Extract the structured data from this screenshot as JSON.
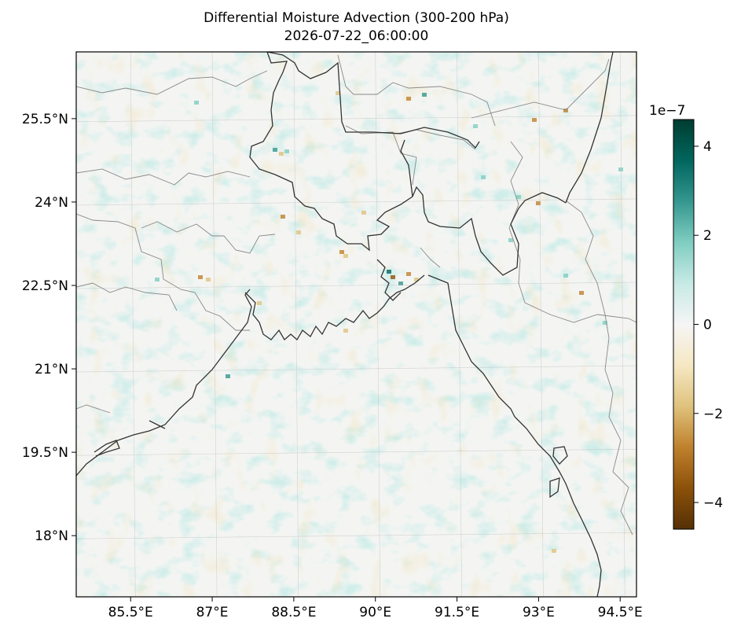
{
  "title": "Differential Moisture Advection (300-200 hPa)",
  "subtitle": "2026-07-22_06:00:00",
  "map": {
    "lon_range": [
      84.5,
      94.8
    ],
    "lat_range": [
      16.9,
      26.7
    ],
    "lon_ticks": [
      {
        "value": 85.5,
        "label": "85.5°E"
      },
      {
        "value": 87,
        "label": "87°E"
      },
      {
        "value": 88.5,
        "label": "88.5°E"
      },
      {
        "value": 90,
        "label": "90°E"
      },
      {
        "value": 91.5,
        "label": "91.5°E"
      },
      {
        "value": 93,
        "label": "93°E"
      },
      {
        "value": 94.5,
        "label": "94.5°E"
      }
    ],
    "lat_ticks": [
      {
        "value": 25.5,
        "label": "25.5°N"
      },
      {
        "value": 24,
        "label": "24°N"
      },
      {
        "value": 22.5,
        "label": "22.5°N"
      },
      {
        "value": 21,
        "label": "21°N"
      },
      {
        "value": 19.5,
        "label": "19.5°N"
      },
      {
        "value": 18,
        "label": "18°N"
      }
    ],
    "gridlines": true,
    "colormap": "BrBG",
    "background_color": "#f4f5f3"
  },
  "colorbar": {
    "multiplier": "1e−7",
    "range": [
      -4.6,
      4.6
    ],
    "ticks": [
      {
        "value": 4,
        "label": "4"
      },
      {
        "value": 2,
        "label": "2"
      },
      {
        "value": 0,
        "label": "0"
      },
      {
        "value": -2,
        "label": "−2"
      },
      {
        "value": -4,
        "label": "−4"
      }
    ],
    "colors": [
      "#543005",
      "#8c510a",
      "#bf812d",
      "#dfc27d",
      "#f6e8c3",
      "#f5f5f5",
      "#c7eae5",
      "#80cdc1",
      "#35978f",
      "#01665e",
      "#003c30"
    ]
  }
}
